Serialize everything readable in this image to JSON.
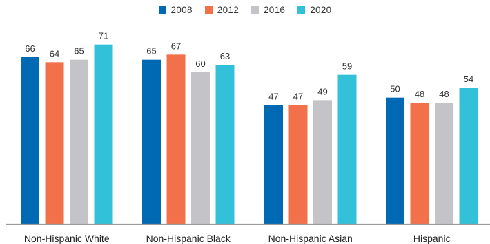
{
  "chart_data": {
    "type": "bar",
    "categories": [
      "Non-Hispanic White",
      "Non-Hispanic Black",
      "Non-Hispanic Asian",
      "Hispanic"
    ],
    "series": [
      {
        "name": "2008",
        "color": "#0069b4",
        "values": [
          66,
          65,
          47,
          50
        ]
      },
      {
        "name": "2012",
        "color": "#f2714a",
        "values": [
          64,
          67,
          47,
          48
        ]
      },
      {
        "name": "2016",
        "color": "#c4c4c8",
        "values": [
          65,
          60,
          49,
          48
        ]
      },
      {
        "name": "2020",
        "color": "#33c1d9",
        "values": [
          71,
          63,
          59,
          54
        ]
      }
    ],
    "title": "",
    "xlabel": "",
    "ylabel": "",
    "ylim": [
      0,
      72
    ],
    "grid": false,
    "legend_position": "top-center",
    "data_labels": true
  }
}
